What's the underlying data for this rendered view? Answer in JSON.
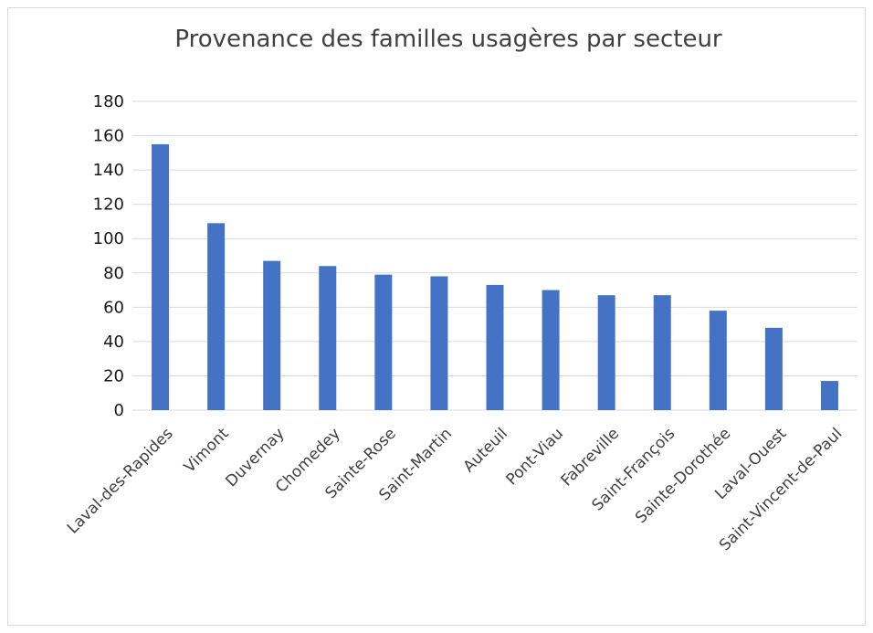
{
  "chart_data": {
    "type": "bar",
    "title": "Provenance des familles usagères par secteur",
    "xlabel": "",
    "ylabel": "",
    "categories": [
      "Laval-des-Rapides",
      "Vimont",
      "Duvernay",
      "Chomedey",
      "Sainte-Rose",
      "Saint-Martin",
      "Auteuil",
      "Pont-Viau",
      "Fabreville",
      "Saint-François",
      "Sainte-Dorothée",
      "Laval-Ouest",
      "Saint-Vincent-de-Paul"
    ],
    "values": [
      155,
      109,
      87,
      84,
      79,
      78,
      73,
      70,
      67,
      67,
      58,
      48,
      17
    ],
    "ylim": [
      0,
      180
    ],
    "yticks": [
      0,
      20,
      40,
      60,
      80,
      100,
      120,
      140,
      160,
      180
    ],
    "grid": true,
    "legend": "none",
    "bar_color": "#4472c4"
  }
}
